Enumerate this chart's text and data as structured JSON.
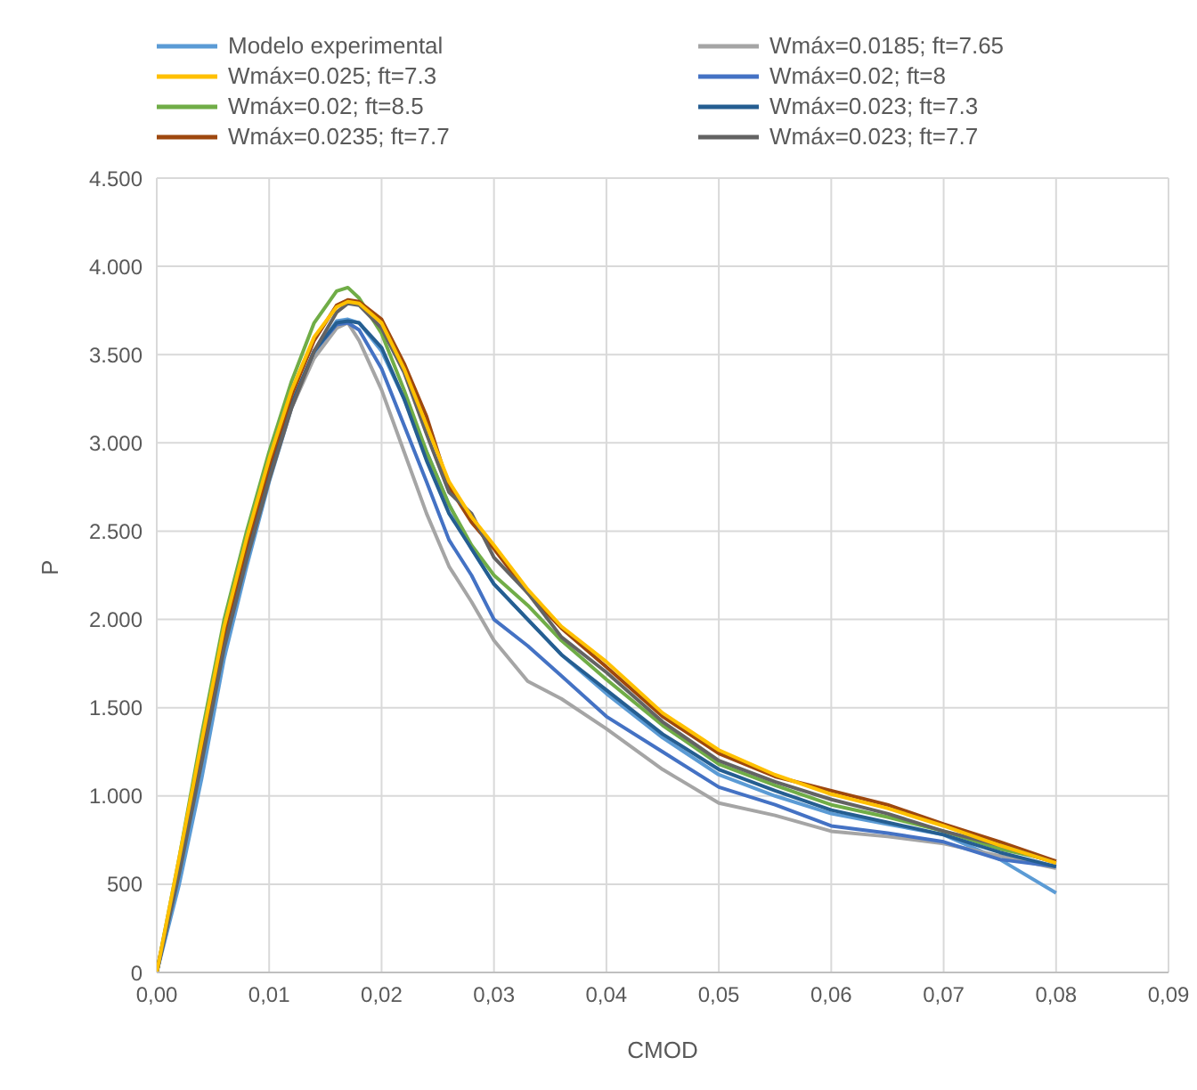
{
  "chart_data": {
    "type": "line",
    "xlabel": "CMOD",
    "ylabel": "P",
    "grid": true,
    "legend": "top",
    "marker": "none",
    "x": [
      0,
      0.002,
      0.004,
      0.006,
      0.008,
      0.01,
      0.012,
      0.014,
      0.016,
      0.017,
      0.018,
      0.02,
      0.022,
      0.024,
      0.026,
      0.028,
      0.03,
      0.033,
      0.036,
      0.04,
      0.045,
      0.05,
      0.055,
      0.06,
      0.065,
      0.07,
      0.075,
      0.08
    ],
    "xlim": [
      0,
      0.09
    ],
    "xticks": [
      {
        "value": 0,
        "label": "0,00"
      },
      {
        "value": 0.01,
        "label": "0,01"
      },
      {
        "value": 0.02,
        "label": "0,02"
      },
      {
        "value": 0.03,
        "label": "0,03"
      },
      {
        "value": 0.04,
        "label": "0,04"
      },
      {
        "value": 0.05,
        "label": "0,05"
      },
      {
        "value": 0.06,
        "label": "0,06"
      },
      {
        "value": 0.07,
        "label": "0,07"
      },
      {
        "value": 0.08,
        "label": "0,08"
      },
      {
        "value": 0.09,
        "label": "0,09"
      }
    ],
    "ylim": [
      0,
      4500
    ],
    "yticks": [
      0,
      500,
      {
        "value": 1000,
        "label": "1.000"
      },
      {
        "value": 1500,
        "label": "1.500"
      },
      {
        "value": 2000,
        "label": "2.000"
      },
      {
        "value": 2500,
        "label": "2.500"
      },
      {
        "value": 3000,
        "label": "3.000"
      },
      {
        "value": 3500,
        "label": "3.500"
      },
      {
        "value": 4000,
        "label": "4.000"
      },
      {
        "value": 4500,
        "label": "4.500"
      }
    ],
    "series": [
      {
        "name": "Modelo experimental",
        "color": "#5b9bd5",
        "values": [
          0,
          500,
          1100,
          1780,
          2300,
          2780,
          3200,
          3500,
          3690,
          3700,
          3680,
          3520,
          3250,
          2950,
          2650,
          2400,
          2200,
          2000,
          1800,
          1580,
          1330,
          1120,
          1000,
          900,
          840,
          780,
          640,
          450
        ]
      },
      {
        "name": "Wmáx=0.0185; ft=7.65",
        "color": "#a5a5a5",
        "values": [
          0,
          580,
          1220,
          1870,
          2380,
          2820,
          3200,
          3480,
          3650,
          3680,
          3580,
          3300,
          2950,
          2600,
          2300,
          2100,
          1880,
          1650,
          1550,
          1380,
          1150,
          960,
          890,
          800,
          770,
          730,
          660,
          590
        ]
      },
      {
        "name": "Wmáx=0.025; ft=7.3",
        "color": "#ffc000",
        "values": [
          0,
          650,
          1310,
          1960,
          2460,
          2910,
          3300,
          3600,
          3770,
          3800,
          3790,
          3680,
          3420,
          3100,
          2780,
          2580,
          2420,
          2170,
          1960,
          1760,
          1470,
          1260,
          1120,
          1010,
          930,
          830,
          720,
          620
        ]
      },
      {
        "name": "Wmáx=0.02; ft=8",
        "color": "#4472c4",
        "values": [
          0,
          580,
          1220,
          1870,
          2380,
          2820,
          3220,
          3520,
          3670,
          3680,
          3640,
          3420,
          3100,
          2780,
          2450,
          2250,
          2000,
          1850,
          1680,
          1450,
          1250,
          1050,
          950,
          830,
          790,
          740,
          640,
          600
        ]
      },
      {
        "name": "Wmáx=0.02; ft=8.5",
        "color": "#70ad47",
        "values": [
          0,
          650,
          1350,
          2000,
          2500,
          2950,
          3350,
          3680,
          3860,
          3880,
          3820,
          3620,
          3300,
          2950,
          2650,
          2420,
          2250,
          2080,
          1880,
          1660,
          1400,
          1180,
          1060,
          950,
          880,
          800,
          700,
          630
        ]
      },
      {
        "name": "Wmáx=0.023; ft=7.3",
        "color": "#255e91",
        "values": [
          0,
          580,
          1220,
          1870,
          2380,
          2820,
          3220,
          3520,
          3680,
          3690,
          3680,
          3540,
          3250,
          2900,
          2600,
          2400,
          2200,
          2000,
          1800,
          1600,
          1350,
          1150,
          1030,
          920,
          850,
          780,
          680,
          600
        ]
      },
      {
        "name": "Wmáx=0.0235; ft=7.7",
        "color": "#9e480e",
        "values": [
          0,
          620,
          1270,
          1920,
          2420,
          2870,
          3270,
          3580,
          3780,
          3810,
          3800,
          3700,
          3450,
          3150,
          2750,
          2550,
          2400,
          2150,
          1950,
          1730,
          1450,
          1240,
          1110,
          1030,
          950,
          840,
          740,
          630
        ]
      },
      {
        "name": "Wmáx=0.023; ft=7.7",
        "color": "#636363",
        "values": [
          0,
          560,
          1190,
          1840,
          2340,
          2790,
          3200,
          3520,
          3740,
          3790,
          3780,
          3650,
          3400,
          3050,
          2720,
          2600,
          2350,
          2150,
          1900,
          1700,
          1420,
          1200,
          1080,
          980,
          900,
          800,
          720,
          620
        ]
      }
    ]
  }
}
